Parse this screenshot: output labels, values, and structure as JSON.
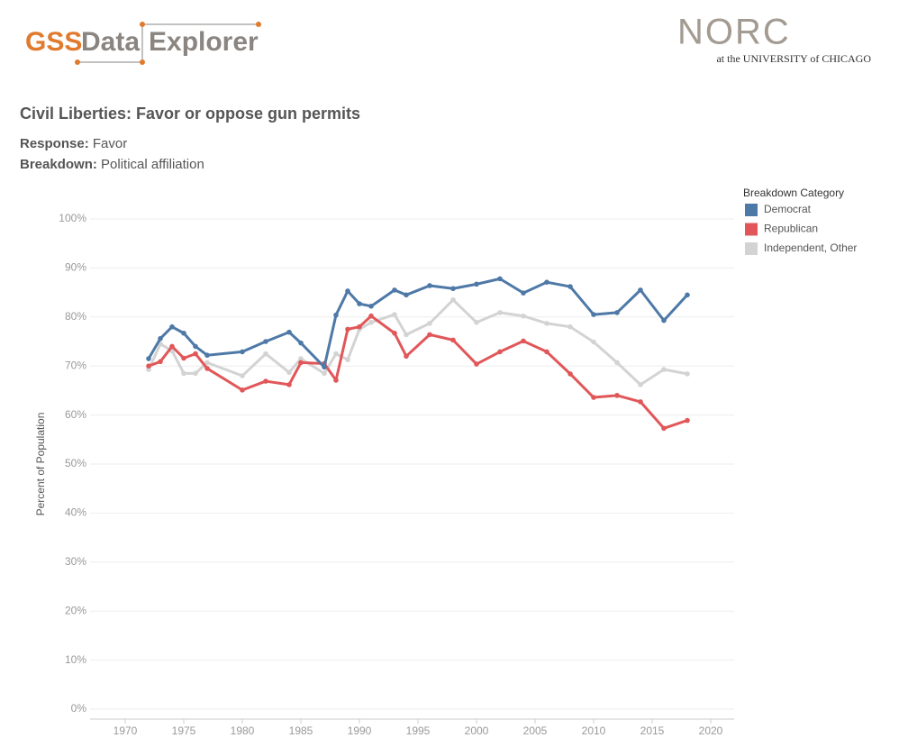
{
  "header": {
    "logo_gss": "GSS",
    "logo_data": "Data",
    "logo_explorer": "Explorer",
    "norc": "NORC",
    "norc_sub": "at the UNIVERSITY of CHICAGO"
  },
  "info": {
    "response_label": "Response:",
    "response": "Favor",
    "breakdown_label": "Breakdown:",
    "breakdown": "Political affiliation"
  },
  "chart_data": {
    "type": "line",
    "title": "Civil Liberties: Favor or oppose gun permits",
    "y_label": "Percent of Population",
    "legend_title": "Breakdown Category",
    "x": [
      1972,
      1973,
      1974,
      1975,
      1976,
      1977,
      1980,
      1982,
      1984,
      1985,
      1987,
      1988,
      1989,
      1990,
      1991,
      1993,
      1994,
      1996,
      1998,
      2000,
      2002,
      2004,
      2006,
      2008,
      2010,
      2012,
      2014,
      2016,
      2018
    ],
    "series": [
      {
        "name": "Democrat",
        "color": "#4e79a7",
        "values": [
          71.5,
          75.6,
          78,
          76.7,
          74,
          72.2,
          72.9,
          75,
          76.9,
          74.7,
          69.8,
          80.4,
          85.3,
          82.7,
          82.2,
          85.5,
          84.5,
          86.4,
          85.8,
          86.7,
          87.8,
          84.9,
          87.1,
          86.2,
          80.5,
          80.9,
          85.5,
          79.3,
          84.5
        ]
      },
      {
        "name": "Republican",
        "color": "#e15759",
        "values": [
          70,
          70.9,
          74,
          71.6,
          72.5,
          69.5,
          65.1,
          66.9,
          66.2,
          70.7,
          70.5,
          67.1,
          77.5,
          78,
          80.2,
          76.7,
          72,
          76.4,
          75.3,
          70.4,
          72.9,
          75.1,
          72.9,
          68.4,
          63.6,
          64,
          62.7,
          57.3,
          58.9
        ]
      },
      {
        "name": "Independent, Other",
        "color": "#d3d3d3",
        "values": [
          69.3,
          74.5,
          73.1,
          68.5,
          68.5,
          70.7,
          68,
          72.5,
          68.7,
          71.5,
          68.5,
          72.5,
          71.3,
          77.5,
          78.9,
          80.5,
          76.4,
          78.7,
          83.5,
          78.9,
          80.9,
          80.2,
          78.7,
          78,
          74.9,
          70.7,
          66.2,
          69.3,
          68.4
        ]
      }
    ],
    "xlim": [
      1967,
      2022
    ],
    "xticks": [
      1970,
      1975,
      1980,
      1985,
      1990,
      1995,
      2000,
      2005,
      2010,
      2015,
      2020
    ],
    "ylim": [
      0,
      100
    ],
    "yticks": [
      {
        "value": 0,
        "label": "0%"
      },
      {
        "value": 10,
        "label": "10%"
      },
      {
        "value": 20,
        "label": "20%"
      },
      {
        "value": 30,
        "label": "30%"
      },
      {
        "value": 40,
        "label": "40%"
      },
      {
        "value": 50,
        "label": "50%"
      },
      {
        "value": 60,
        "label": "60%"
      },
      {
        "value": 70,
        "label": "70%"
      },
      {
        "value": 80,
        "label": "80%"
      },
      {
        "value": 90,
        "label": "90%"
      },
      {
        "value": 100,
        "label": "100%"
      }
    ],
    "grid": true,
    "legend": "right"
  }
}
